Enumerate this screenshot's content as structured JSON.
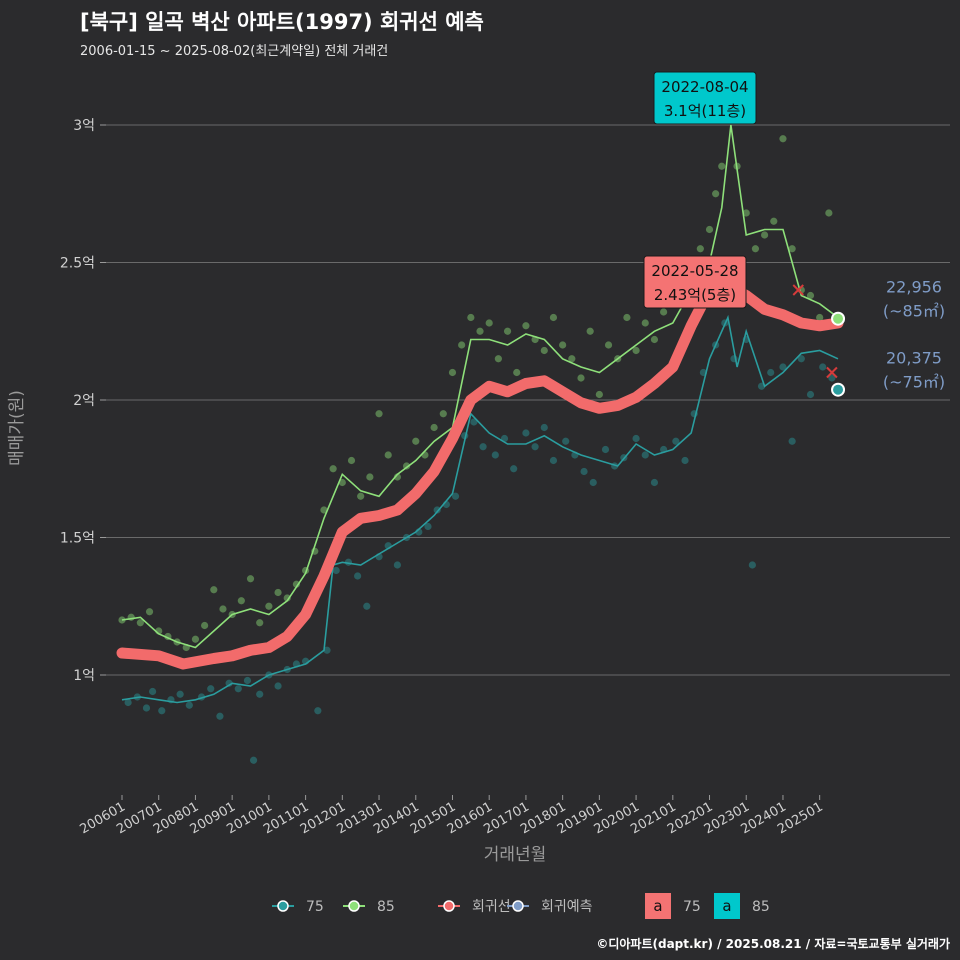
{
  "header": {
    "title": "[북구] 일곡 벽산 아파트(1997) 회귀선 예측",
    "subtitle": "2006-01-15 ~ 2025-08-02(최근계약일) 전체 거래건"
  },
  "footer": {
    "credit": "©디아파트(dapt.kr) / 2025.08.21 / 자료=국토교통부 실거래가"
  },
  "colors": {
    "background": "#2b2b2d",
    "series_75": "#2a9d9f",
    "series_85": "#8ee07a",
    "regression": "#f26b6b",
    "forecast": "#7f9cc7",
    "grid": "#6a6a6a",
    "tooltip_85": "#00c8cc",
    "tooltip_reg": "#f47373"
  },
  "chart_data": {
    "type": "line",
    "xlabel": "거래년월",
    "ylabel": "매매가(원)",
    "ylim": [
      0.6,
      3.25
    ],
    "y_unit": "억",
    "y_ticks": [
      {
        "value": 1.0,
        "label": "1억"
      },
      {
        "value": 1.5,
        "label": "1.5억"
      },
      {
        "value": 2.0,
        "label": "2억"
      },
      {
        "value": 2.5,
        "label": "2.5억"
      },
      {
        "value": 3.0,
        "label": "3억"
      }
    ],
    "x_range": [
      "2006-01",
      "2025-08"
    ],
    "x_ticks": [
      "200601",
      "200701",
      "200801",
      "200901",
      "201001",
      "201101",
      "201201",
      "201301",
      "201401",
      "201501",
      "201601",
      "201701",
      "201801",
      "201901",
      "202001",
      "202101",
      "202201",
      "202301",
      "202401",
      "202501"
    ],
    "series": [
      {
        "name": "75",
        "color": "#2a9d9f",
        "trend": [
          [
            "2006-01",
            0.91
          ],
          [
            "2006-07",
            0.92
          ],
          [
            "2007-01",
            0.91
          ],
          [
            "2007-07",
            0.9
          ],
          [
            "2008-01",
            0.91
          ],
          [
            "2008-07",
            0.93
          ],
          [
            "2009-01",
            0.97
          ],
          [
            "2009-07",
            0.96
          ],
          [
            "2010-01",
            1.0
          ],
          [
            "2010-07",
            1.02
          ],
          [
            "2011-01",
            1.04
          ],
          [
            "2011-07",
            1.09
          ],
          [
            "2011-10",
            1.4
          ],
          [
            "2012-01",
            1.41
          ],
          [
            "2012-07",
            1.4
          ],
          [
            "2013-01",
            1.44
          ],
          [
            "2013-07",
            1.48
          ],
          [
            "2014-01",
            1.52
          ],
          [
            "2014-07",
            1.58
          ],
          [
            "2015-01",
            1.66
          ],
          [
            "2015-07",
            1.95
          ],
          [
            "2016-01",
            1.88
          ],
          [
            "2016-07",
            1.84
          ],
          [
            "2017-01",
            1.84
          ],
          [
            "2017-07",
            1.87
          ],
          [
            "2018-01",
            1.83
          ],
          [
            "2018-07",
            1.8
          ],
          [
            "2019-01",
            1.78
          ],
          [
            "2019-07",
            1.76
          ],
          [
            "2020-01",
            1.84
          ],
          [
            "2020-07",
            1.8
          ],
          [
            "2021-01",
            1.82
          ],
          [
            "2021-07",
            1.88
          ],
          [
            "2022-01",
            2.15
          ],
          [
            "2022-07",
            2.3
          ],
          [
            "2022-10",
            2.12
          ],
          [
            "2023-01",
            2.25
          ],
          [
            "2023-07",
            2.05
          ],
          [
            "2024-01",
            2.1
          ],
          [
            "2024-07",
            2.17
          ],
          [
            "2025-01",
            2.18
          ],
          [
            "2025-07",
            2.15
          ]
        ],
        "last": {
          "date": "2025-07",
          "value": 2.0375,
          "label_price": "20,375",
          "label_area": "(~75㎡)"
        }
      },
      {
        "name": "85",
        "color": "#8ee07a",
        "trend": [
          [
            "2006-01",
            1.2
          ],
          [
            "2006-07",
            1.21
          ],
          [
            "2007-01",
            1.15
          ],
          [
            "2007-07",
            1.12
          ],
          [
            "2008-01",
            1.1
          ],
          [
            "2008-07",
            1.16
          ],
          [
            "2009-01",
            1.22
          ],
          [
            "2009-07",
            1.24
          ],
          [
            "2010-01",
            1.22
          ],
          [
            "2010-07",
            1.27
          ],
          [
            "2011-01",
            1.37
          ],
          [
            "2011-07",
            1.57
          ],
          [
            "2012-01",
            1.73
          ],
          [
            "2012-07",
            1.67
          ],
          [
            "2013-01",
            1.65
          ],
          [
            "2013-07",
            1.73
          ],
          [
            "2014-01",
            1.78
          ],
          [
            "2014-07",
            1.85
          ],
          [
            "2015-01",
            1.9
          ],
          [
            "2015-07",
            2.22
          ],
          [
            "2016-01",
            2.22
          ],
          [
            "2016-07",
            2.2
          ],
          [
            "2017-01",
            2.24
          ],
          [
            "2017-07",
            2.22
          ],
          [
            "2018-01",
            2.15
          ],
          [
            "2018-07",
            2.12
          ],
          [
            "2019-01",
            2.1
          ],
          [
            "2019-07",
            2.15
          ],
          [
            "2020-01",
            2.2
          ],
          [
            "2020-07",
            2.25
          ],
          [
            "2021-01",
            2.28
          ],
          [
            "2021-07",
            2.4
          ],
          [
            "2022-01",
            2.5
          ],
          [
            "2022-05",
            2.7
          ],
          [
            "2022-08",
            3.0
          ],
          [
            "2023-01",
            2.6
          ],
          [
            "2023-07",
            2.62
          ],
          [
            "2024-01",
            2.62
          ],
          [
            "2024-07",
            2.38
          ],
          [
            "2025-01",
            2.35
          ],
          [
            "2025-07",
            2.3
          ]
        ],
        "last": {
          "date": "2025-07",
          "value": 2.2956,
          "label_price": "22,956",
          "label_area": "(~85㎡)"
        }
      },
      {
        "name": "회귀선",
        "color": "#f26b6b",
        "trend": [
          [
            "2006-01",
            1.08
          ],
          [
            "2007-01",
            1.07
          ],
          [
            "2007-09",
            1.04
          ],
          [
            "2008-07",
            1.06
          ],
          [
            "2009-01",
            1.07
          ],
          [
            "2009-07",
            1.09
          ],
          [
            "2010-01",
            1.1
          ],
          [
            "2010-07",
            1.14
          ],
          [
            "2011-01",
            1.22
          ],
          [
            "2011-07",
            1.36
          ],
          [
            "2012-01",
            1.52
          ],
          [
            "2012-07",
            1.57
          ],
          [
            "2013-01",
            1.58
          ],
          [
            "2013-07",
            1.6
          ],
          [
            "2014-01",
            1.66
          ],
          [
            "2014-07",
            1.74
          ],
          [
            "2015-01",
            1.86
          ],
          [
            "2015-07",
            2.0
          ],
          [
            "2016-01",
            2.05
          ],
          [
            "2016-07",
            2.03
          ],
          [
            "2017-01",
            2.06
          ],
          [
            "2017-07",
            2.07
          ],
          [
            "2018-01",
            2.03
          ],
          [
            "2018-07",
            1.99
          ],
          [
            "2019-01",
            1.97
          ],
          [
            "2019-07",
            1.98
          ],
          [
            "2020-01",
            2.01
          ],
          [
            "2020-07",
            2.06
          ],
          [
            "2021-01",
            2.12
          ],
          [
            "2021-07",
            2.27
          ],
          [
            "2022-01",
            2.4
          ],
          [
            "2022-05",
            2.43
          ],
          [
            "2023-01",
            2.38
          ],
          [
            "2023-07",
            2.33
          ],
          [
            "2024-01",
            2.31
          ],
          [
            "2024-07",
            2.28
          ],
          [
            "2025-01",
            2.27
          ],
          [
            "2025-07",
            2.28
          ]
        ]
      },
      {
        "name": "회귀예측",
        "color": "#7f9cc7",
        "trend": []
      }
    ],
    "scatter_75": [
      [
        "2006-03",
        0.9
      ],
      [
        "2006-06",
        0.92
      ],
      [
        "2006-09",
        0.88
      ],
      [
        "2006-11",
        0.94
      ],
      [
        "2007-02",
        0.87
      ],
      [
        "2007-05",
        0.91
      ],
      [
        "2007-08",
        0.93
      ],
      [
        "2007-11",
        0.89
      ],
      [
        "2008-03",
        0.92
      ],
      [
        "2008-06",
        0.95
      ],
      [
        "2008-09",
        0.85
      ],
      [
        "2008-12",
        0.97
      ],
      [
        "2009-03",
        0.95
      ],
      [
        "2009-06",
        0.98
      ],
      [
        "2009-08",
        0.69
      ],
      [
        "2009-10",
        0.93
      ],
      [
        "2010-01",
        1.0
      ],
      [
        "2010-04",
        0.96
      ],
      [
        "2010-07",
        1.02
      ],
      [
        "2010-10",
        1.04
      ],
      [
        "2011-01",
        1.05
      ],
      [
        "2011-05",
        0.87
      ],
      [
        "2011-08",
        1.09
      ],
      [
        "2011-11",
        1.38
      ],
      [
        "2012-03",
        1.41
      ],
      [
        "2012-06",
        1.36
      ],
      [
        "2012-09",
        1.25
      ],
      [
        "2013-01",
        1.43
      ],
      [
        "2013-04",
        1.47
      ],
      [
        "2013-07",
        1.4
      ],
      [
        "2013-10",
        1.5
      ],
      [
        "2014-02",
        1.52
      ],
      [
        "2014-05",
        1.54
      ],
      [
        "2014-08",
        1.6
      ],
      [
        "2014-11",
        1.62
      ],
      [
        "2015-02",
        1.65
      ],
      [
        "2015-05",
        1.87
      ],
      [
        "2015-08",
        1.92
      ],
      [
        "2015-11",
        1.83
      ],
      [
        "2016-03",
        1.8
      ],
      [
        "2016-06",
        1.86
      ],
      [
        "2016-09",
        1.75
      ],
      [
        "2017-01",
        1.88
      ],
      [
        "2017-04",
        1.83
      ],
      [
        "2017-07",
        1.9
      ],
      [
        "2017-10",
        1.78
      ],
      [
        "2018-02",
        1.85
      ],
      [
        "2018-05",
        1.8
      ],
      [
        "2018-08",
        1.74
      ],
      [
        "2018-11",
        1.7
      ],
      [
        "2019-03",
        1.82
      ],
      [
        "2019-06",
        1.76
      ],
      [
        "2019-09",
        1.79
      ],
      [
        "2020-01",
        1.86
      ],
      [
        "2020-04",
        1.8
      ],
      [
        "2020-07",
        1.7
      ],
      [
        "2020-10",
        1.82
      ],
      [
        "2021-02",
        1.85
      ],
      [
        "2021-05",
        1.78
      ],
      [
        "2021-08",
        1.95
      ],
      [
        "2021-11",
        2.1
      ],
      [
        "2022-03",
        2.2
      ],
      [
        "2022-06",
        2.28
      ],
      [
        "2022-09",
        2.15
      ],
      [
        "2023-01",
        2.22
      ],
      [
        "2023-03",
        1.4
      ],
      [
        "2023-06",
        2.05
      ],
      [
        "2023-09",
        2.1
      ],
      [
        "2024-01",
        2.12
      ],
      [
        "2024-04",
        1.85
      ],
      [
        "2024-07",
        2.15
      ],
      [
        "2024-10",
        2.02
      ],
      [
        "2025-02",
        2.12
      ],
      [
        "2025-05",
        2.08
      ]
    ],
    "scatter_85": [
      [
        "2006-01",
        1.2
      ],
      [
        "2006-04",
        1.21
      ],
      [
        "2006-07",
        1.19
      ],
      [
        "2006-10",
        1.23
      ],
      [
        "2007-01",
        1.16
      ],
      [
        "2007-04",
        1.14
      ],
      [
        "2007-07",
        1.12
      ],
      [
        "2007-10",
        1.1
      ],
      [
        "2008-01",
        1.13
      ],
      [
        "2008-04",
        1.18
      ],
      [
        "2008-07",
        1.31
      ],
      [
        "2008-10",
        1.24
      ],
      [
        "2009-01",
        1.22
      ],
      [
        "2009-04",
        1.27
      ],
      [
        "2009-07",
        1.35
      ],
      [
        "2009-10",
        1.19
      ],
      [
        "2010-01",
        1.25
      ],
      [
        "2010-04",
        1.3
      ],
      [
        "2010-07",
        1.28
      ],
      [
        "2010-10",
        1.33
      ],
      [
        "2011-01",
        1.38
      ],
      [
        "2011-04",
        1.45
      ],
      [
        "2011-07",
        1.6
      ],
      [
        "2011-10",
        1.75
      ],
      [
        "2012-01",
        1.7
      ],
      [
        "2012-04",
        1.78
      ],
      [
        "2012-07",
        1.65
      ],
      [
        "2012-10",
        1.72
      ],
      [
        "2013-01",
        1.95
      ],
      [
        "2013-04",
        1.8
      ],
      [
        "2013-07",
        1.72
      ],
      [
        "2013-10",
        1.76
      ],
      [
        "2014-01",
        1.85
      ],
      [
        "2014-04",
        1.8
      ],
      [
        "2014-07",
        1.9
      ],
      [
        "2014-10",
        1.95
      ],
      [
        "2015-01",
        2.1
      ],
      [
        "2015-04",
        2.2
      ],
      [
        "2015-07",
        2.3
      ],
      [
        "2015-10",
        2.25
      ],
      [
        "2016-01",
        2.28
      ],
      [
        "2016-04",
        2.15
      ],
      [
        "2016-07",
        2.25
      ],
      [
        "2016-10",
        2.1
      ],
      [
        "2017-01",
        2.27
      ],
      [
        "2017-04",
        2.22
      ],
      [
        "2017-07",
        2.18
      ],
      [
        "2017-10",
        2.3
      ],
      [
        "2018-01",
        2.2
      ],
      [
        "2018-04",
        2.15
      ],
      [
        "2018-07",
        2.08
      ],
      [
        "2018-10",
        2.25
      ],
      [
        "2019-01",
        2.02
      ],
      [
        "2019-04",
        2.2
      ],
      [
        "2019-07",
        2.15
      ],
      [
        "2019-10",
        2.3
      ],
      [
        "2020-01",
        2.18
      ],
      [
        "2020-04",
        2.28
      ],
      [
        "2020-07",
        2.22
      ],
      [
        "2020-10",
        2.32
      ],
      [
        "2021-01",
        2.35
      ],
      [
        "2021-04",
        2.4
      ],
      [
        "2021-07",
        2.42
      ],
      [
        "2021-10",
        2.55
      ],
      [
        "2022-01",
        2.62
      ],
      [
        "2022-03",
        2.75
      ],
      [
        "2022-05",
        2.85
      ],
      [
        "2022-08",
        3.1
      ],
      [
        "2022-10",
        2.85
      ],
      [
        "2023-01",
        2.68
      ],
      [
        "2023-04",
        2.55
      ],
      [
        "2023-07",
        2.6
      ],
      [
        "2023-10",
        2.65
      ],
      [
        "2024-01",
        2.95
      ],
      [
        "2024-04",
        2.55
      ],
      [
        "2024-07",
        2.4
      ],
      [
        "2024-10",
        2.38
      ],
      [
        "2025-01",
        2.3
      ],
      [
        "2025-04",
        2.68
      ],
      [
        "2025-06",
        2.3
      ]
    ],
    "markers_x": [
      [
        "2022-05",
        2.38
      ],
      [
        "2024-06",
        2.4
      ],
      [
        "2025-05",
        2.1
      ]
    ],
    "annotations": [
      {
        "id": "max85",
        "date_text": "2022-08-04",
        "value_text": "3.1억(11층)",
        "at": [
          "2022-08",
          3.1
        ],
        "box_color": "#00c8cc"
      },
      {
        "id": "maxreg",
        "date_text": "2022-05-28",
        "value_text": "2.43억(5층)",
        "at": [
          "2022-05",
          2.43
        ],
        "box_color": "#f47373"
      }
    ],
    "legend": {
      "position": "bottom",
      "items": [
        {
          "label": "75",
          "color": "#2a9d9f",
          "kind": "line-point"
        },
        {
          "label": "85",
          "color": "#8ee07a",
          "kind": "line-point"
        },
        {
          "label": "회귀선",
          "color": "#f26b6b",
          "kind": "line-point"
        },
        {
          "label": "회귀예측",
          "color": "#7f9cc7",
          "kind": "line-point"
        }
      ],
      "box_items": [
        {
          "glyph": "a",
          "label": "75",
          "color": "#f47373"
        },
        {
          "glyph": "a",
          "label": "85",
          "color": "#00c8cc"
        }
      ]
    }
  }
}
